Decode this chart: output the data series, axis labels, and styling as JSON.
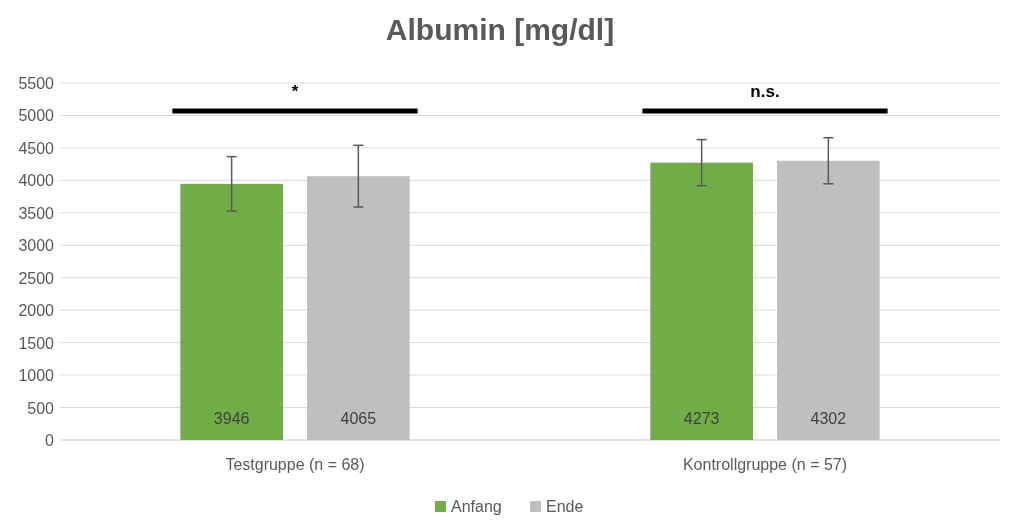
{
  "chart_data": {
    "type": "bar",
    "title": "Albumin [mg/dl]",
    "categories": [
      "Testgruppe (n = 68)",
      "Kontrollgruppe (n = 57)"
    ],
    "series": [
      {
        "name": "Anfang",
        "color": "#70ad47",
        "values": [
          3946,
          4273
        ],
        "errors": [
          420,
          355
        ]
      },
      {
        "name": "Ende",
        "color": "#bfbfbf",
        "values": [
          4065,
          4302
        ],
        "errors": [
          475,
          355
        ]
      }
    ],
    "ylim": [
      0,
      5500
    ],
    "yticks": [
      0,
      500,
      1000,
      1500,
      2000,
      2500,
      3000,
      3500,
      4000,
      4500,
      5000,
      5500
    ],
    "grid": "y",
    "legend": "bottom",
    "data_labels": true,
    "annotations": [
      "*",
      "n.s."
    ]
  }
}
